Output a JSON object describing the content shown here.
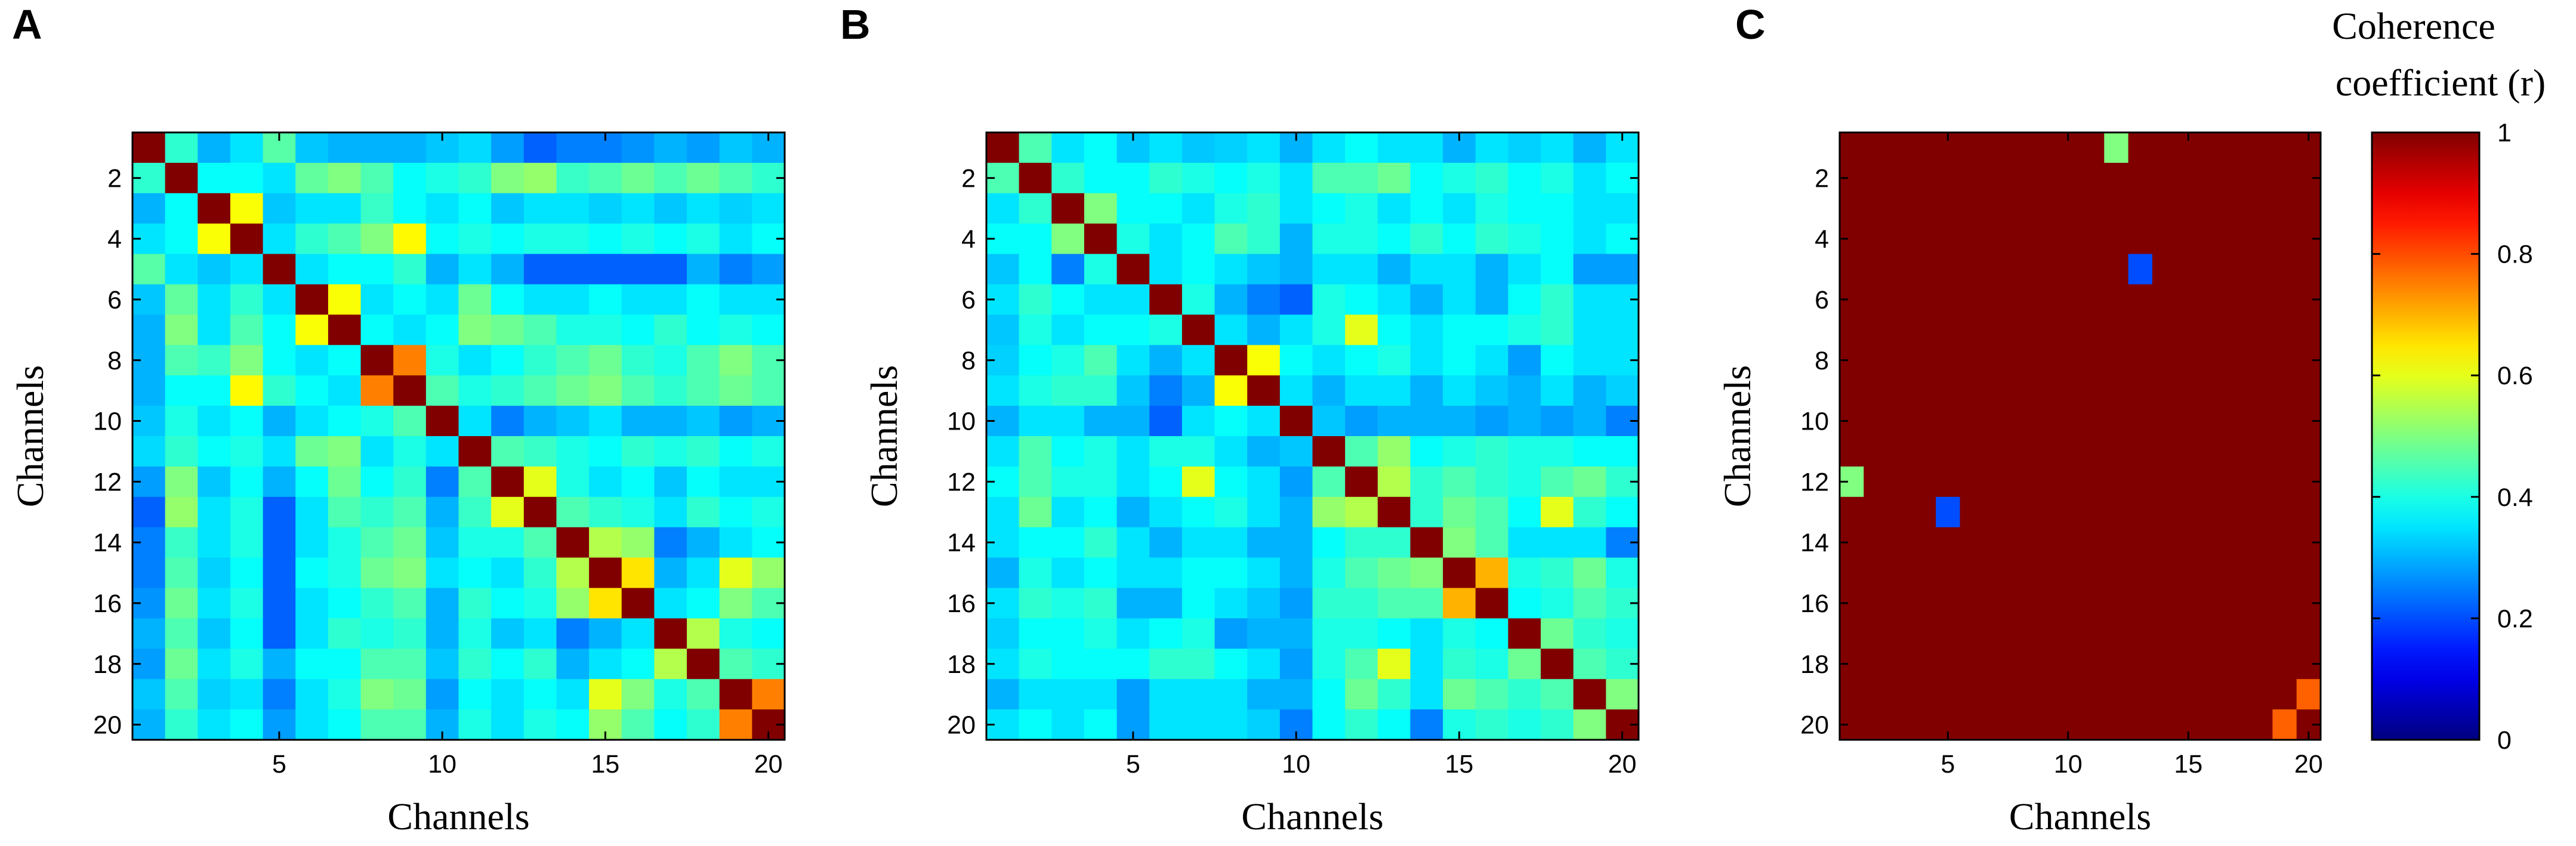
{
  "figure": {
    "panels": [
      {
        "letter": "A",
        "xlabel": "Channels",
        "ylabel": "Channels"
      },
      {
        "letter": "B",
        "xlabel": "Channels",
        "ylabel": "Channels"
      },
      {
        "letter": "C",
        "xlabel": "Channels",
        "ylabel": "Channels"
      }
    ],
    "colorbar": {
      "title_line1": "Coherence",
      "title_line2": "coefficient (r)",
      "ticks": [
        "1",
        "0.8",
        "0.6",
        "0.4",
        "0.2",
        "0"
      ]
    }
  },
  "chart_data": [
    {
      "type": "heatmap",
      "panel": "A",
      "xlabel": "Channels",
      "ylabel": "Channels",
      "x_ticks": [
        5,
        10,
        15,
        20
      ],
      "y_ticks": [
        2,
        4,
        6,
        8,
        10,
        12,
        14,
        16,
        18,
        20
      ],
      "size": 20,
      "clim": [
        0,
        1
      ],
      "values": [
        [
          1.0,
          0.42,
          0.3,
          0.35,
          0.46,
          0.32,
          0.3,
          0.3,
          0.3,
          0.32,
          0.34,
          0.28,
          0.22,
          0.25,
          0.25,
          0.27,
          0.3,
          0.28,
          0.32,
          0.3
        ],
        [
          0.42,
          1.0,
          0.38,
          0.38,
          0.35,
          0.47,
          0.5,
          0.45,
          0.38,
          0.4,
          0.42,
          0.5,
          0.52,
          0.43,
          0.45,
          0.48,
          0.45,
          0.48,
          0.45,
          0.42
        ],
        [
          0.3,
          0.38,
          1.0,
          0.62,
          0.32,
          0.35,
          0.35,
          0.43,
          0.38,
          0.35,
          0.38,
          0.32,
          0.35,
          0.35,
          0.33,
          0.35,
          0.32,
          0.35,
          0.33,
          0.35
        ],
        [
          0.35,
          0.38,
          0.62,
          1.0,
          0.35,
          0.42,
          0.45,
          0.5,
          0.63,
          0.38,
          0.4,
          0.38,
          0.4,
          0.4,
          0.38,
          0.4,
          0.38,
          0.4,
          0.35,
          0.38
        ],
        [
          0.46,
          0.35,
          0.32,
          0.35,
          1.0,
          0.35,
          0.38,
          0.38,
          0.42,
          0.3,
          0.35,
          0.3,
          0.22,
          0.22,
          0.22,
          0.22,
          0.22,
          0.3,
          0.25,
          0.28
        ],
        [
          0.32,
          0.47,
          0.35,
          0.42,
          0.35,
          1.0,
          0.62,
          0.35,
          0.38,
          0.35,
          0.48,
          0.38,
          0.35,
          0.35,
          0.38,
          0.35,
          0.35,
          0.38,
          0.35,
          0.35
        ],
        [
          0.3,
          0.5,
          0.35,
          0.45,
          0.38,
          0.62,
          1.0,
          0.38,
          0.35,
          0.38,
          0.5,
          0.48,
          0.45,
          0.4,
          0.4,
          0.38,
          0.42,
          0.38,
          0.4,
          0.38
        ],
        [
          0.3,
          0.45,
          0.43,
          0.5,
          0.38,
          0.35,
          0.38,
          1.0,
          0.75,
          0.4,
          0.35,
          0.38,
          0.42,
          0.45,
          0.48,
          0.42,
          0.4,
          0.45,
          0.5,
          0.45
        ],
        [
          0.3,
          0.38,
          0.38,
          0.63,
          0.42,
          0.38,
          0.35,
          0.75,
          1.0,
          0.45,
          0.4,
          0.42,
          0.45,
          0.48,
          0.5,
          0.45,
          0.42,
          0.45,
          0.48,
          0.45
        ],
        [
          0.32,
          0.4,
          0.35,
          0.38,
          0.3,
          0.35,
          0.38,
          0.4,
          0.45,
          1.0,
          0.35,
          0.25,
          0.3,
          0.32,
          0.35,
          0.3,
          0.3,
          0.32,
          0.28,
          0.3
        ],
        [
          0.34,
          0.42,
          0.38,
          0.4,
          0.35,
          0.48,
          0.5,
          0.35,
          0.4,
          0.35,
          1.0,
          0.45,
          0.43,
          0.4,
          0.38,
          0.42,
          0.4,
          0.42,
          0.38,
          0.4
        ],
        [
          0.28,
          0.5,
          0.32,
          0.38,
          0.3,
          0.38,
          0.48,
          0.38,
          0.42,
          0.25,
          0.45,
          1.0,
          0.6,
          0.4,
          0.35,
          0.38,
          0.32,
          0.38,
          0.35,
          0.35
        ],
        [
          0.22,
          0.52,
          0.35,
          0.4,
          0.22,
          0.35,
          0.45,
          0.42,
          0.45,
          0.3,
          0.43,
          0.6,
          1.0,
          0.45,
          0.42,
          0.4,
          0.35,
          0.42,
          0.38,
          0.4
        ],
        [
          0.25,
          0.43,
          0.35,
          0.4,
          0.22,
          0.35,
          0.4,
          0.45,
          0.48,
          0.32,
          0.4,
          0.4,
          0.45,
          1.0,
          0.55,
          0.52,
          0.25,
          0.3,
          0.35,
          0.38
        ],
        [
          0.25,
          0.45,
          0.33,
          0.38,
          0.22,
          0.38,
          0.4,
          0.48,
          0.5,
          0.35,
          0.38,
          0.35,
          0.42,
          0.55,
          1.0,
          0.65,
          0.3,
          0.35,
          0.6,
          0.52
        ],
        [
          0.27,
          0.48,
          0.35,
          0.4,
          0.22,
          0.35,
          0.38,
          0.42,
          0.45,
          0.3,
          0.42,
          0.38,
          0.4,
          0.52,
          0.65,
          1.0,
          0.35,
          0.38,
          0.5,
          0.45
        ],
        [
          0.3,
          0.45,
          0.32,
          0.38,
          0.22,
          0.35,
          0.42,
          0.4,
          0.42,
          0.3,
          0.4,
          0.32,
          0.35,
          0.25,
          0.3,
          0.35,
          1.0,
          0.55,
          0.4,
          0.38
        ],
        [
          0.28,
          0.48,
          0.35,
          0.4,
          0.3,
          0.38,
          0.38,
          0.45,
          0.45,
          0.32,
          0.42,
          0.38,
          0.42,
          0.3,
          0.35,
          0.38,
          0.55,
          1.0,
          0.45,
          0.42
        ],
        [
          0.32,
          0.45,
          0.33,
          0.35,
          0.25,
          0.35,
          0.4,
          0.5,
          0.48,
          0.28,
          0.38,
          0.35,
          0.38,
          0.35,
          0.6,
          0.5,
          0.4,
          0.45,
          1.0,
          0.75
        ],
        [
          0.3,
          0.42,
          0.35,
          0.38,
          0.28,
          0.35,
          0.38,
          0.45,
          0.45,
          0.3,
          0.4,
          0.35,
          0.4,
          0.38,
          0.52,
          0.45,
          0.38,
          0.42,
          0.75,
          1.0
        ]
      ]
    },
    {
      "type": "heatmap",
      "panel": "B",
      "xlabel": "Channels",
      "ylabel": "Channels",
      "x_ticks": [
        5,
        10,
        15,
        20
      ],
      "y_ticks": [
        2,
        4,
        6,
        8,
        10,
        12,
        14,
        16,
        18,
        20
      ],
      "size": 20,
      "clim": [
        0,
        1
      ],
      "values": [
        [
          1.0,
          0.45,
          0.35,
          0.38,
          0.32,
          0.35,
          0.32,
          0.33,
          0.35,
          0.3,
          0.35,
          0.38,
          0.35,
          0.35,
          0.3,
          0.35,
          0.33,
          0.35,
          0.3,
          0.35
        ],
        [
          0.45,
          1.0,
          0.42,
          0.38,
          0.38,
          0.42,
          0.4,
          0.38,
          0.4,
          0.35,
          0.45,
          0.45,
          0.48,
          0.38,
          0.4,
          0.42,
          0.38,
          0.4,
          0.35,
          0.38
        ],
        [
          0.35,
          0.42,
          1.0,
          0.5,
          0.38,
          0.38,
          0.35,
          0.4,
          0.42,
          0.35,
          0.38,
          0.4,
          0.35,
          0.38,
          0.35,
          0.4,
          0.38,
          0.38,
          0.35,
          0.35
        ],
        [
          0.38,
          0.38,
          0.5,
          1.0,
          0.4,
          0.35,
          0.38,
          0.45,
          0.42,
          0.3,
          0.4,
          0.4,
          0.38,
          0.42,
          0.38,
          0.42,
          0.4,
          0.38,
          0.35,
          0.38
        ],
        [
          0.32,
          0.38,
          0.25,
          0.4,
          1.0,
          0.35,
          0.38,
          0.35,
          0.32,
          0.3,
          0.35,
          0.35,
          0.3,
          0.35,
          0.35,
          0.3,
          0.35,
          0.38,
          0.28,
          0.28
        ],
        [
          0.35,
          0.42,
          0.38,
          0.35,
          0.35,
          1.0,
          0.4,
          0.3,
          0.25,
          0.22,
          0.4,
          0.38,
          0.35,
          0.3,
          0.35,
          0.3,
          0.38,
          0.42,
          0.35,
          0.35
        ],
        [
          0.32,
          0.4,
          0.35,
          0.38,
          0.38,
          0.4,
          1.0,
          0.35,
          0.3,
          0.35,
          0.4,
          0.6,
          0.38,
          0.35,
          0.38,
          0.38,
          0.4,
          0.42,
          0.35,
          0.35
        ],
        [
          0.33,
          0.38,
          0.4,
          0.45,
          0.35,
          0.3,
          0.35,
          1.0,
          0.62,
          0.38,
          0.35,
          0.38,
          0.4,
          0.35,
          0.38,
          0.35,
          0.28,
          0.38,
          0.35,
          0.35
        ],
        [
          0.35,
          0.4,
          0.42,
          0.42,
          0.32,
          0.25,
          0.3,
          0.62,
          1.0,
          0.35,
          0.3,
          0.35,
          0.35,
          0.3,
          0.35,
          0.32,
          0.3,
          0.35,
          0.3,
          0.33
        ],
        [
          0.3,
          0.35,
          0.35,
          0.3,
          0.3,
          0.22,
          0.35,
          0.38,
          0.35,
          1.0,
          0.32,
          0.28,
          0.3,
          0.3,
          0.3,
          0.28,
          0.3,
          0.28,
          0.3,
          0.25
        ],
        [
          0.35,
          0.45,
          0.38,
          0.4,
          0.35,
          0.4,
          0.4,
          0.35,
          0.3,
          0.32,
          1.0,
          0.45,
          0.52,
          0.38,
          0.4,
          0.42,
          0.4,
          0.4,
          0.38,
          0.38
        ],
        [
          0.38,
          0.45,
          0.4,
          0.4,
          0.35,
          0.38,
          0.6,
          0.38,
          0.35,
          0.28,
          0.45,
          1.0,
          0.55,
          0.42,
          0.45,
          0.42,
          0.4,
          0.45,
          0.48,
          0.42
        ],
        [
          0.35,
          0.48,
          0.35,
          0.38,
          0.3,
          0.35,
          0.38,
          0.4,
          0.35,
          0.3,
          0.52,
          0.55,
          1.0,
          0.42,
          0.48,
          0.45,
          0.38,
          0.6,
          0.42,
          0.38
        ],
        [
          0.35,
          0.38,
          0.38,
          0.42,
          0.35,
          0.3,
          0.35,
          0.35,
          0.3,
          0.3,
          0.38,
          0.42,
          0.42,
          1.0,
          0.5,
          0.45,
          0.35,
          0.35,
          0.35,
          0.25
        ],
        [
          0.3,
          0.4,
          0.35,
          0.38,
          0.35,
          0.35,
          0.38,
          0.38,
          0.35,
          0.3,
          0.4,
          0.45,
          0.48,
          0.5,
          1.0,
          0.7,
          0.4,
          0.42,
          0.48,
          0.4
        ],
        [
          0.35,
          0.42,
          0.4,
          0.42,
          0.3,
          0.3,
          0.38,
          0.35,
          0.32,
          0.28,
          0.42,
          0.42,
          0.45,
          0.45,
          0.7,
          1.0,
          0.38,
          0.4,
          0.45,
          0.42
        ],
        [
          0.33,
          0.38,
          0.38,
          0.4,
          0.35,
          0.38,
          0.4,
          0.28,
          0.3,
          0.3,
          0.4,
          0.4,
          0.38,
          0.35,
          0.4,
          0.38,
          1.0,
          0.48,
          0.42,
          0.4
        ],
        [
          0.35,
          0.4,
          0.38,
          0.38,
          0.38,
          0.42,
          0.42,
          0.38,
          0.35,
          0.28,
          0.4,
          0.45,
          0.6,
          0.35,
          0.42,
          0.4,
          0.48,
          1.0,
          0.45,
          0.42
        ],
        [
          0.3,
          0.35,
          0.35,
          0.35,
          0.28,
          0.35,
          0.35,
          0.35,
          0.3,
          0.3,
          0.38,
          0.48,
          0.42,
          0.35,
          0.48,
          0.45,
          0.42,
          0.45,
          1.0,
          0.5
        ],
        [
          0.35,
          0.38,
          0.35,
          0.38,
          0.28,
          0.35,
          0.35,
          0.35,
          0.33,
          0.25,
          0.38,
          0.42,
          0.38,
          0.25,
          0.4,
          0.42,
          0.4,
          0.42,
          0.5,
          1.0
        ]
      ]
    },
    {
      "type": "heatmap",
      "panel": "C",
      "xlabel": "Channels",
      "ylabel": "Channels",
      "x_ticks": [
        5,
        10,
        15,
        20
      ],
      "y_ticks": [
        2,
        4,
        6,
        8,
        10,
        12,
        14,
        16,
        18,
        20
      ],
      "size": 20,
      "clim": [
        0,
        1
      ],
      "base_value": 1.0,
      "exceptions": [
        {
          "row": 1,
          "col": 12,
          "value": 0.5
        },
        {
          "row": 5,
          "col": 13,
          "value": 0.2
        },
        {
          "row": 12,
          "col": 1,
          "value": 0.5
        },
        {
          "row": 13,
          "col": 5,
          "value": 0.2
        },
        {
          "row": 19,
          "col": 20,
          "value": 0.78
        },
        {
          "row": 20,
          "col": 19,
          "value": 0.78
        }
      ]
    }
  ]
}
